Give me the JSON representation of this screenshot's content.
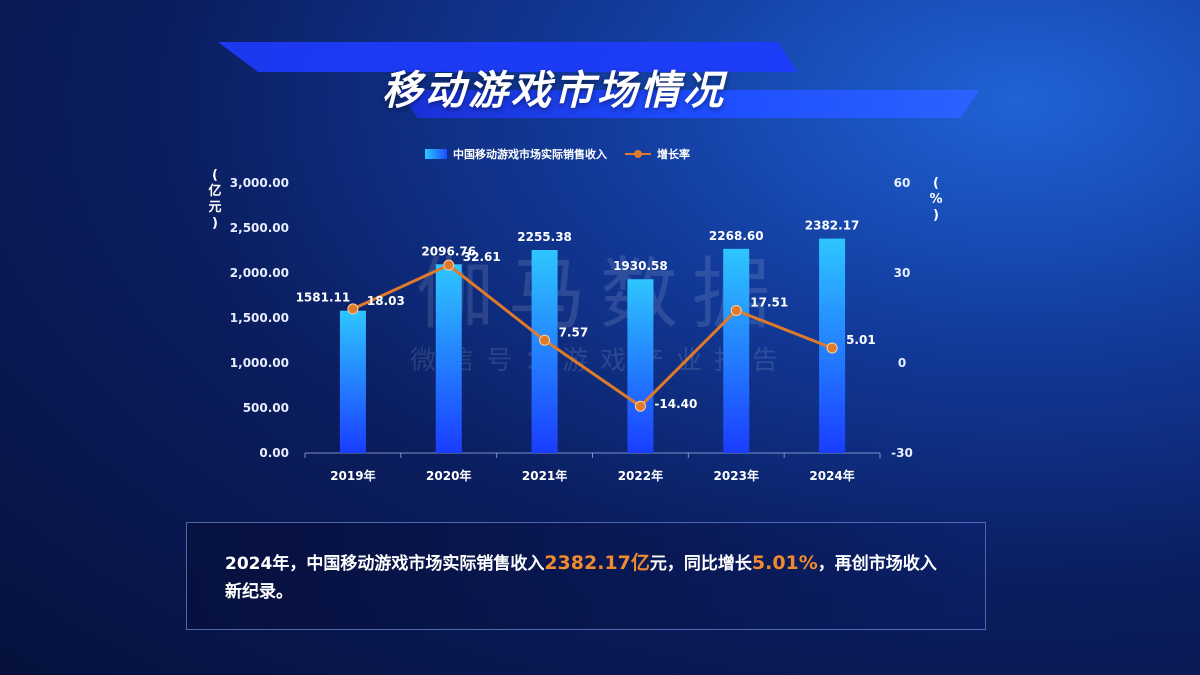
{
  "page": {
    "title": "移动游戏市场情况"
  },
  "legend": {
    "bar_label": "中国移动游戏市场实际销售收入",
    "line_label": "增长率"
  },
  "units": {
    "left": [
      "(",
      "亿",
      "元",
      ")"
    ],
    "right": [
      "(",
      "%",
      ")"
    ]
  },
  "watermark": {
    "main": "伽马数据",
    "sub": "微信号：游戏产业报告"
  },
  "summary": {
    "part1": "2024年，中国移动游戏市场实际销售收入",
    "value1": "2382.17亿",
    "part2": "元，同比增长",
    "value2": "5.01%",
    "part3": "，再创市场收入新纪录。"
  },
  "colors": {
    "bar_top": "#2ec6ff",
    "bar_bottom": "#1a3dff",
    "line": "#e07a2b",
    "accent_text": "#f08a2e"
  },
  "chart_data": {
    "type": "bar",
    "categories": [
      "2019年",
      "2020年",
      "2021年",
      "2022年",
      "2023年",
      "2024年"
    ],
    "series": [
      {
        "name": "中国移动游戏市场实际销售收入",
        "type": "bar",
        "axis": "left",
        "values": [
          1581.11,
          2096.76,
          2255.38,
          1930.58,
          2268.6,
          2382.17
        ],
        "labels": [
          "1581.11",
          "2096.76",
          "2255.38",
          "1930.58",
          "2268.60",
          "2382.17"
        ]
      },
      {
        "name": "增长率",
        "type": "line",
        "axis": "right",
        "values": [
          18.03,
          32.61,
          7.57,
          -14.4,
          17.51,
          5.01
        ],
        "labels": [
          "18.03",
          "32.61",
          "7.57",
          "-14.40",
          "17.51",
          "5.01"
        ]
      }
    ],
    "y_left": {
      "min": 0,
      "max": 3000,
      "ticks": [
        "0.00",
        "500.00",
        "1,000.00",
        "1,500.00",
        "2,000.00",
        "2,500.00",
        "3,000.00"
      ]
    },
    "y_right": {
      "min": -30,
      "max": 60,
      "ticks": [
        "-30",
        "0",
        "30",
        "60"
      ]
    },
    "grid": false,
    "legend_position": "top-center"
  }
}
